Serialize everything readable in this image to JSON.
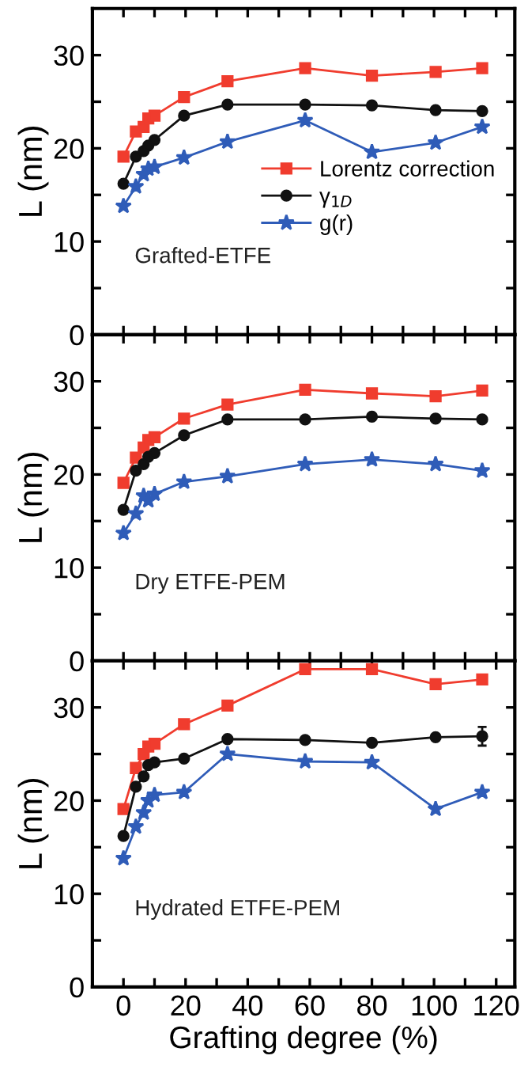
{
  "chart_data": [
    {
      "type": "line",
      "ylabel": "L (nm)",
      "annotations": [
        "Grafted-ETFE"
      ],
      "x": [
        0,
        4,
        6.5,
        8,
        10,
        19.5,
        33.5,
        58.5,
        80,
        100.5,
        115.5
      ],
      "series": [
        {
          "name": "Lorentz correction",
          "color": "#f03c2e",
          "marker": "square",
          "values": [
            19.1,
            21.8,
            22.3,
            23.2,
            23.5,
            25.5,
            27.2,
            28.6,
            27.8,
            28.2,
            28.6
          ]
        },
        {
          "name": "γ$_{1D}$",
          "color": "#111111",
          "marker": "circle",
          "values": [
            16.2,
            19.1,
            19.7,
            20.3,
            20.9,
            23.5,
            24.7,
            24.7,
            24.6,
            24.1,
            24.0
          ]
        },
        {
          "name": "g(r)",
          "color": "#2f5cb8",
          "marker": "star",
          "values": [
            13.8,
            15.9,
            17.2,
            17.8,
            18.0,
            19.0,
            20.7,
            23.0,
            19.6,
            20.6,
            22.3
          ]
        }
      ],
      "xlim": [
        -10,
        126
      ],
      "ylim": [
        0,
        35
      ],
      "xticks": [
        {
          "value": 0,
          "label": null
        },
        {
          "value": 10,
          "label": null
        },
        {
          "value": 20,
          "label": null
        },
        {
          "value": 30,
          "label": null
        },
        {
          "value": 40,
          "label": null
        },
        {
          "value": 50,
          "label": null
        },
        {
          "value": 60,
          "label": null
        },
        {
          "value": 70,
          "label": null
        },
        {
          "value": 80,
          "label": null
        },
        {
          "value": 90,
          "label": null
        },
        {
          "value": 100,
          "label": null
        },
        {
          "value": 110,
          "label": null
        },
        {
          "value": 120,
          "label": null
        }
      ],
      "yticks": [
        0,
        {
          "value": 5,
          "label": null
        },
        10,
        {
          "value": 15,
          "label": null
        },
        20,
        {
          "value": 25,
          "label": null
        },
        30
      ],
      "tick_labels": "y",
      "legend": "right",
      "grid": false
    },
    {
      "type": "line",
      "ylabel": "L (nm)",
      "annotations": [
        "Dry ETFE-PEM"
      ],
      "x": [
        0,
        4,
        6.5,
        8,
        10,
        19.5,
        33.5,
        58.5,
        80,
        100.5,
        115.5
      ],
      "series": [
        {
          "color": "#f03c2e",
          "marker": "square",
          "values": [
            19.1,
            21.8,
            22.9,
            23.7,
            24.0,
            26.0,
            27.5,
            29.1,
            28.7,
            28.4,
            29.0
          ]
        },
        {
          "color": "#111111",
          "marker": "circle",
          "values": [
            16.2,
            20.4,
            21.1,
            21.9,
            22.3,
            24.2,
            25.9,
            25.9,
            26.2,
            26.0,
            25.9
          ]
        },
        {
          "color": "#2f5cb8",
          "marker": "star",
          "values": [
            13.7,
            15.8,
            17.7,
            17.2,
            17.9,
            19.2,
            19.8,
            21.1,
            21.6,
            21.1,
            20.4
          ]
        }
      ],
      "xlim": [
        -10,
        126
      ],
      "ylim": [
        0,
        35
      ],
      "xticks": [
        {
          "value": 0,
          "label": null
        },
        {
          "value": 10,
          "label": null
        },
        {
          "value": 20,
          "label": null
        },
        {
          "value": 30,
          "label": null
        },
        {
          "value": 40,
          "label": null
        },
        {
          "value": 50,
          "label": null
        },
        {
          "value": 60,
          "label": null
        },
        {
          "value": 70,
          "label": null
        },
        {
          "value": 80,
          "label": null
        },
        {
          "value": 90,
          "label": null
        },
        {
          "value": 100,
          "label": null
        },
        {
          "value": 110,
          "label": null
        },
        {
          "value": 120,
          "label": null
        }
      ],
      "yticks": [
        0,
        {
          "value": 5,
          "label": null
        },
        10,
        {
          "value": 15,
          "label": null
        },
        20,
        {
          "value": 25,
          "label": null
        },
        30
      ],
      "tick_labels": "y",
      "grid": false
    },
    {
      "type": "line",
      "ylabel": "L (nm)",
      "xlabel": "Grafting degree (%)",
      "annotations": [
        "Hydrated ETFE-PEM"
      ],
      "x": [
        0,
        4,
        6.5,
        8,
        10,
        19.5,
        33.5,
        58.5,
        80,
        100.5,
        115.5
      ],
      "series": [
        {
          "color": "#f03c2e",
          "marker": "square",
          "values": [
            19.1,
            23.5,
            25.0,
            25.8,
            26.1,
            28.2,
            30.2,
            34.1,
            34.1,
            32.5,
            33.0
          ]
        },
        {
          "color": "#111111",
          "marker": "circle",
          "values": [
            16.2,
            21.5,
            22.6,
            23.8,
            24.1,
            24.5,
            26.6,
            26.5,
            26.2,
            26.8,
            26.9
          ],
          "errors": [
            null,
            null,
            null,
            null,
            null,
            null,
            null,
            null,
            null,
            null,
            1.0
          ]
        },
        {
          "color": "#2f5cb8",
          "marker": "star",
          "values": [
            13.8,
            17.2,
            18.7,
            20.0,
            20.6,
            20.9,
            25.0,
            24.2,
            24.1,
            19.1,
            20.9
          ]
        }
      ],
      "xlim": [
        -10,
        126
      ],
      "ylim": [
        0,
        35
      ],
      "xticks": [
        0,
        {
          "value": 10,
          "label": null
        },
        20,
        {
          "value": 30,
          "label": null
        },
        40,
        {
          "value": 50,
          "label": null
        },
        60,
        {
          "value": 70,
          "label": null
        },
        80,
        {
          "value": 90,
          "label": null
        },
        100,
        {
          "value": 110,
          "label": null
        },
        120
      ],
      "yticks": [
        0,
        {
          "value": 5,
          "label": null
        },
        10,
        {
          "value": 15,
          "label": null
        },
        20,
        {
          "value": 25,
          "label": null
        },
        30
      ],
      "grid": false
    }
  ]
}
